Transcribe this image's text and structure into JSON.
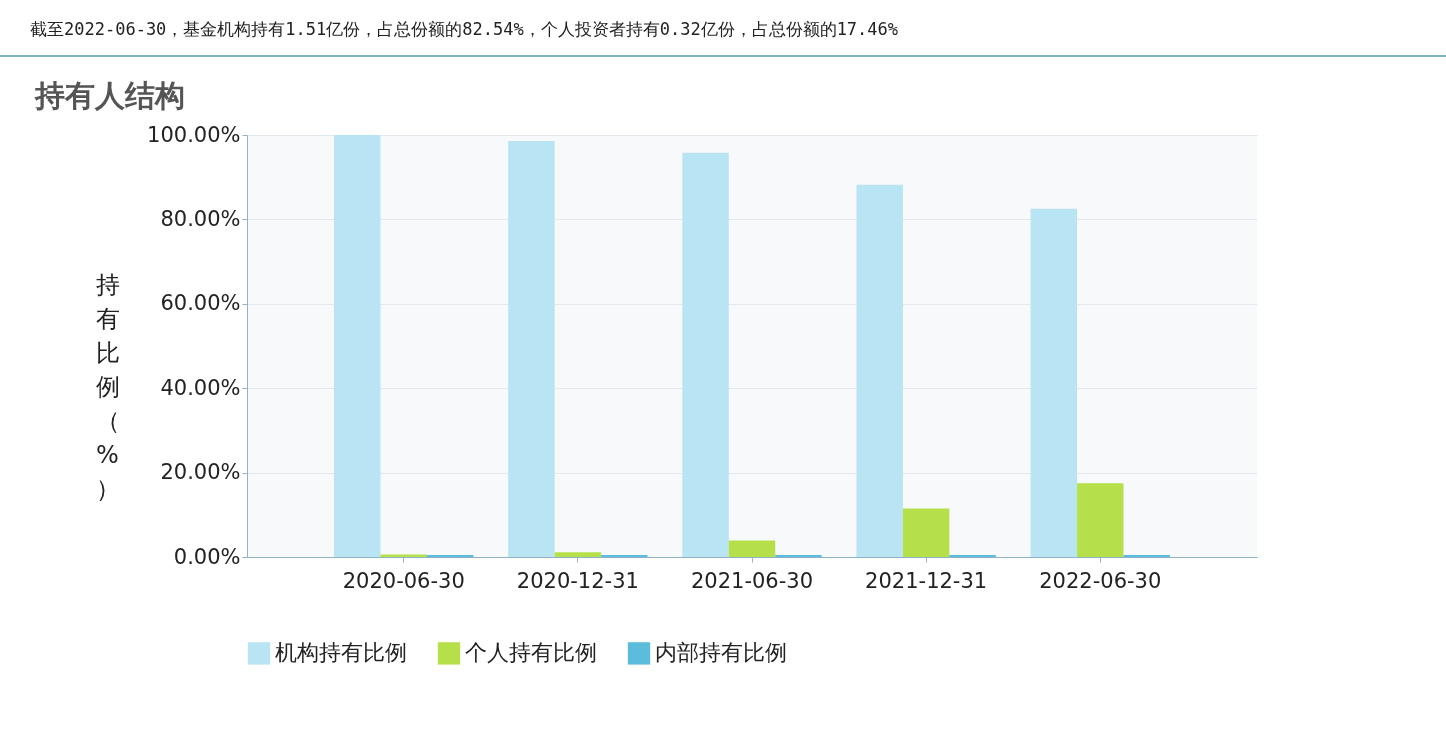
{
  "chart_data": {
    "type": "bar",
    "title": "持有人结构",
    "annotations": [
      "截至2022-06-30，基金机构持有1.51亿份，占总份额的82.54%，个人投资者持有0.32亿份，占总份额的17.46%"
    ],
    "ylabel": "持有比例（%）",
    "categories": [
      "2020-06-30",
      "2020-12-31",
      "2021-06-30",
      "2021-12-31",
      "2022-06-30"
    ],
    "series": [
      {
        "name": "机构持有比例",
        "color": "#b8e4f4",
        "values": [
          100,
          98.6,
          95.8,
          88.2,
          82.5
        ]
      },
      {
        "name": "个人持有比例",
        "color": "#b6e04a",
        "values": [
          0.6,
          1.1,
          3.9,
          11.5,
          17.5
        ]
      },
      {
        "name": "内部持有比例",
        "color": "#5bbcdc",
        "values": [
          0.5,
          0.5,
          0.5,
          0.5,
          0.5
        ]
      }
    ],
    "ylim": [
      0,
      100
    ],
    "yticks": [
      {
        "value": 0,
        "label": "0.00%"
      },
      {
        "value": 20,
        "label": "20.00%"
      },
      {
        "value": 40,
        "label": "40.00%"
      },
      {
        "value": 60,
        "label": "60.00%"
      },
      {
        "value": 80,
        "label": "80.00%"
      },
      {
        "value": 100,
        "label": "100.00%"
      }
    ],
    "grid": "y",
    "legend": "bottom"
  }
}
